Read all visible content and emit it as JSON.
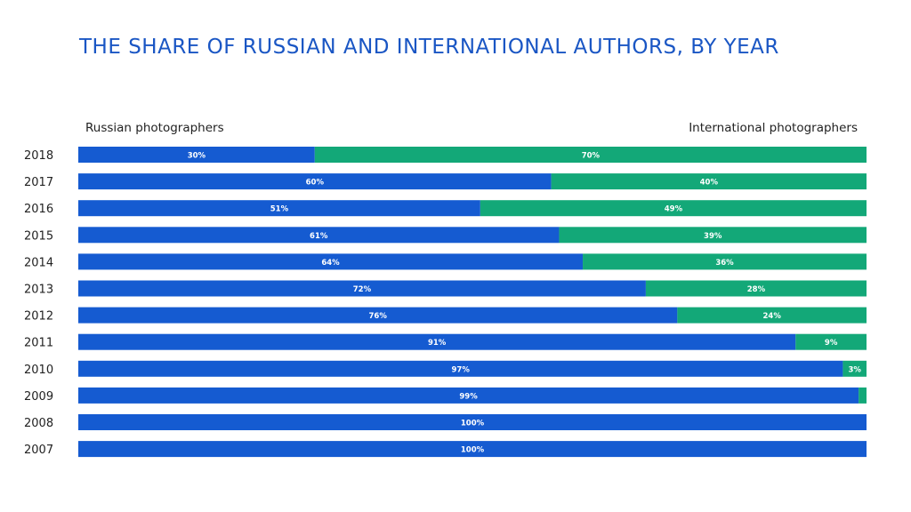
{
  "chart_data": {
    "type": "bar",
    "stacked": true,
    "orientation": "horizontal",
    "title": "THE SHARE OF RUSSIAN AND INTERNATIONAL AUTHORS, BY YEAR",
    "categories": [
      "2018",
      "2017",
      "2016",
      "2015",
      "2014",
      "2013",
      "2012",
      "2011",
      "2010",
      "2009",
      "2008",
      "2007"
    ],
    "series": [
      {
        "name": "Russian photographers",
        "color": "#155bd1",
        "values": [
          30,
          60,
          51,
          61,
          64,
          72,
          76,
          91,
          97,
          99,
          100,
          100
        ],
        "labels": [
          "30%",
          "60%",
          "51%",
          "61%",
          "64%",
          "72%",
          "76%",
          "91%",
          "97%",
          "99%",
          "100%",
          "100%"
        ]
      },
      {
        "name": "International photographers",
        "color": "#13a878",
        "values": [
          70,
          40,
          49,
          39,
          36,
          28,
          24,
          9,
          3,
          1,
          0,
          0
        ],
        "labels": [
          "70%",
          "40%",
          "49%",
          "39%",
          "36%",
          "28%",
          "24%",
          "9%",
          "3%",
          "",
          "",
          ""
        ]
      }
    ],
    "xlim": [
      0,
      100
    ],
    "legend_position": "top"
  }
}
